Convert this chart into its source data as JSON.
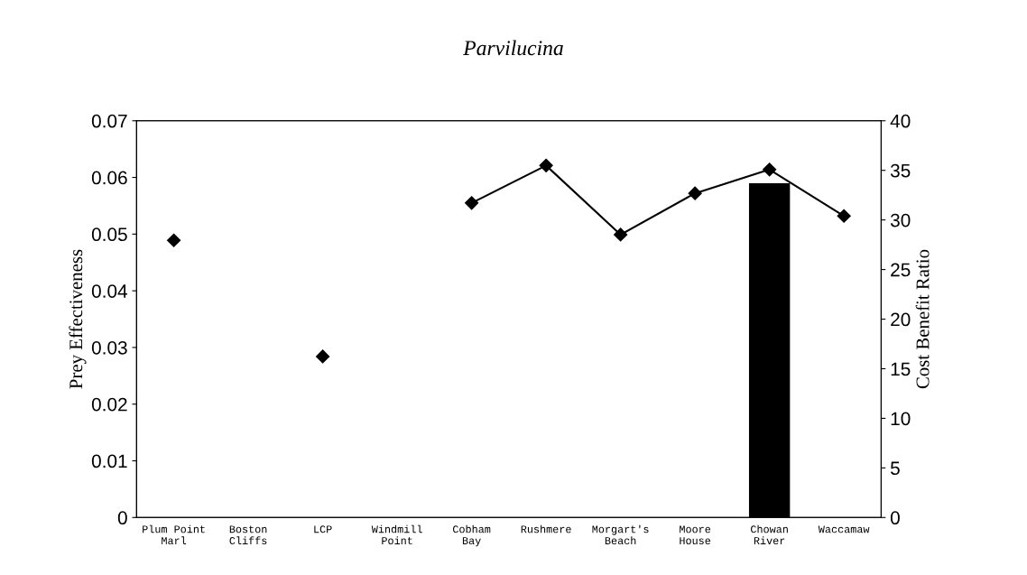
{
  "chart_data": {
    "type": "line",
    "title": "Parvilucina",
    "ylabel": "Prey Effectiveness",
    "y2label": "Cost Benefit Ratio",
    "categories": [
      "Plum Point\nMarl",
      "Boston\nCliffs",
      "LCP",
      "Windmill\nPoint",
      "Cobham\nBay",
      "Rushmere",
      "Morgart's\nBeach",
      "Moore\nHouse",
      "Chowan\nRiver",
      "Waccamaw"
    ],
    "series": [
      {
        "type": "bar",
        "axis": "y2",
        "color": "#000000",
        "values": [
          null,
          null,
          null,
          null,
          null,
          null,
          null,
          null,
          33.7,
          null
        ]
      },
      {
        "color": "#000000",
        "marker": "diamond",
        "line_style": "solid",
        "values": [
          0.0489,
          null,
          0.0284,
          null,
          0.0555,
          0.0621,
          0.0499,
          0.0572,
          0.0614,
          0.0532
        ]
      }
    ],
    "ylim": [
      0,
      0.07
    ],
    "yticks": [
      0,
      0.01,
      0.02,
      0.03,
      0.04,
      0.05,
      0.06,
      0.07
    ],
    "y2lim": [
      0,
      40
    ],
    "y2ticks": [
      0,
      5,
      10,
      15,
      20,
      25,
      30,
      35,
      40
    ],
    "grid": false,
    "legend": false
  }
}
